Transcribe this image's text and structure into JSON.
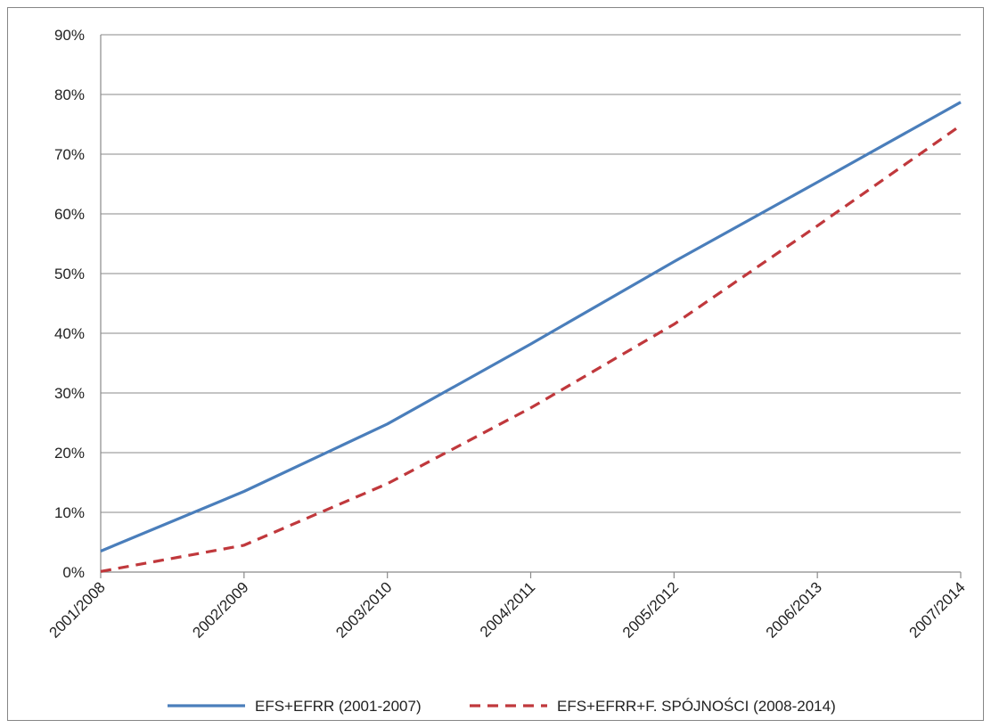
{
  "chart_data": {
    "type": "line",
    "title": "",
    "xlabel": "",
    "ylabel": "",
    "categories": [
      "2001/2008",
      "2002/2009",
      "2003/2010",
      "2004/2011",
      "2005/2012",
      "2006/2013",
      "2007/2014"
    ],
    "yticks": [
      "0%",
      "10%",
      "20%",
      "30%",
      "40%",
      "50%",
      "60%",
      "70%",
      "80%",
      "90%"
    ],
    "ylim": [
      0,
      90
    ],
    "y_unit": "%",
    "grid": true,
    "legend_position": "bottom",
    "series": [
      {
        "name": "EFS+EFRR (2001-2007)",
        "values": [
          3.5,
          13.5,
          24.8,
          38.2,
          52.0,
          65.3,
          78.7
        ],
        "color": "#4a7ebb",
        "style": "solid"
      },
      {
        "name": "EFS+EFRR+F. SPÓJNOŚCI (2008-2014)",
        "values": [
          0.1,
          4.5,
          14.8,
          27.5,
          41.5,
          58.0,
          74.8
        ],
        "color": "#c0383c",
        "style": "dashed"
      }
    ]
  }
}
